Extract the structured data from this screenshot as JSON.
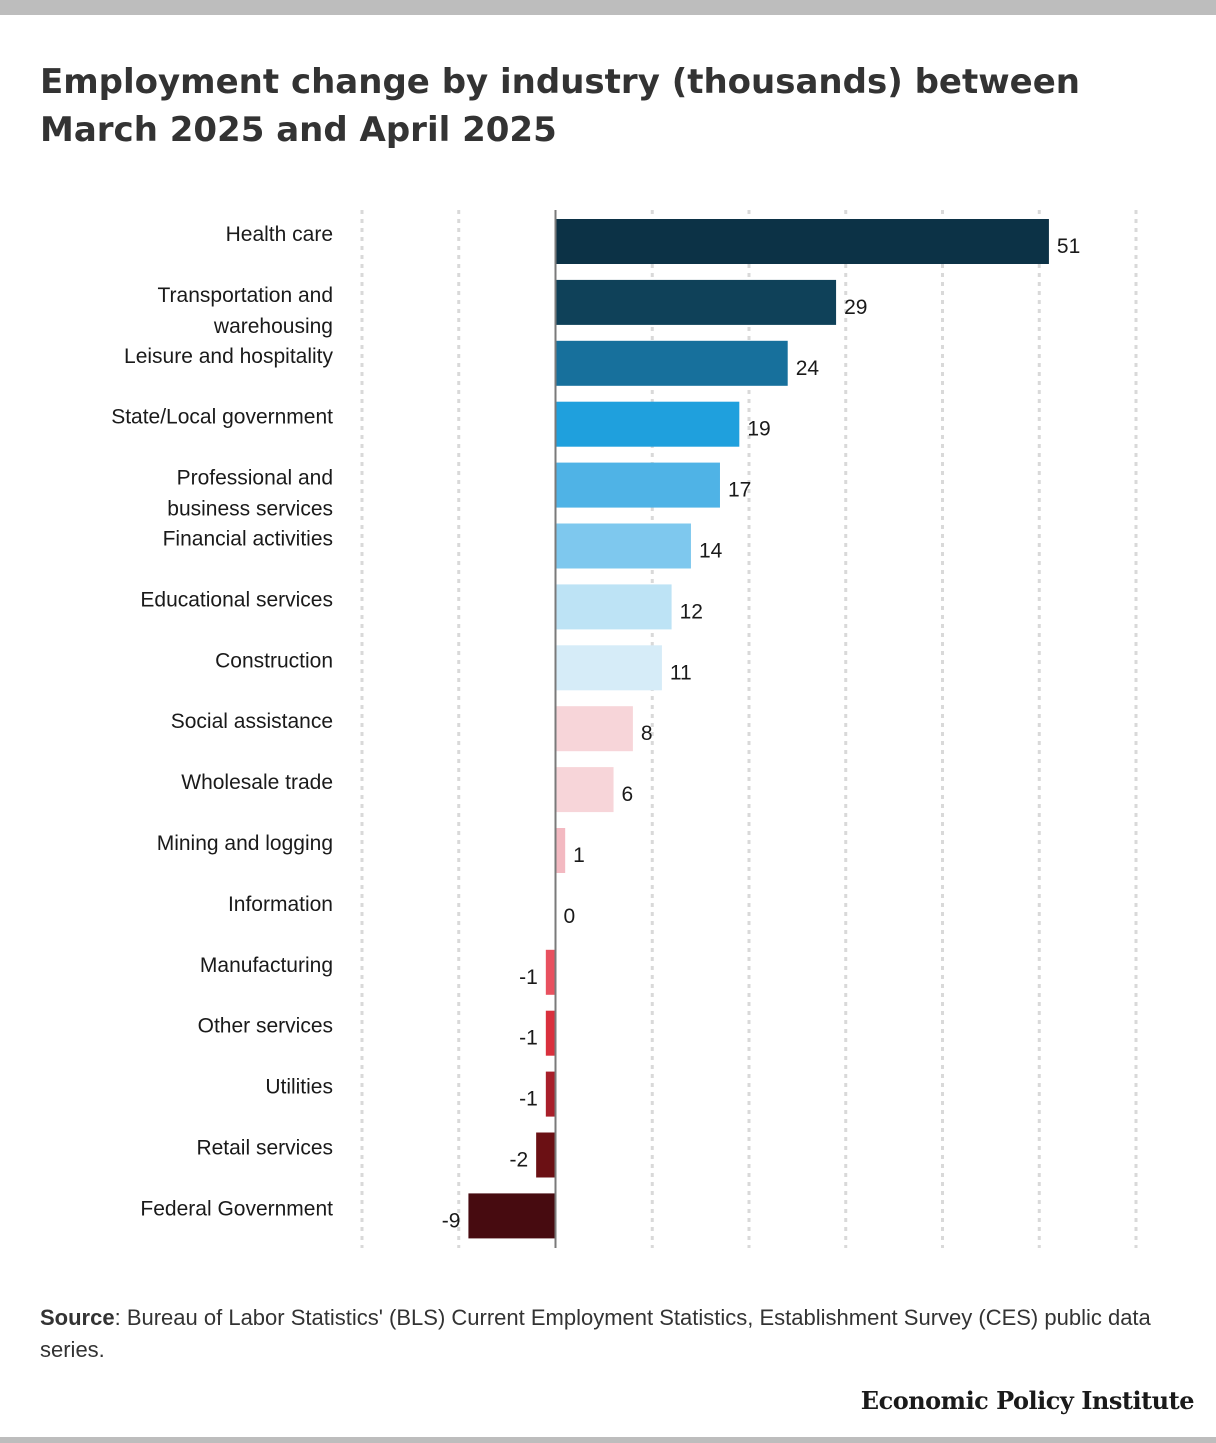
{
  "title": "Employment change by industry (thousands) between March 2025 and April 2025",
  "source": {
    "label": "Source",
    "text": ": Bureau of Labor Statistics' (BLS) Current Employment Statistics, Establishment Survey (CES) public data series."
  },
  "brand": "Economic Policy Institute",
  "chart_data": {
    "type": "bar",
    "orientation": "horizontal",
    "title": "Employment change by industry (thousands) between March 2025 and April 2025",
    "categories": [
      "Health care",
      "Transportation and warehousing",
      "Leisure and hospitality",
      "State/Local government",
      "Professional and business services",
      "Financial activities",
      "Educational services",
      "Construction",
      "Social assistance",
      "Wholesale trade",
      "Mining and logging",
      "Information",
      "Manufacturing",
      "Other services",
      "Utilities",
      "Retail services",
      "Federal Government"
    ],
    "values": [
      51,
      29,
      24,
      19,
      17,
      14,
      12,
      11,
      8,
      6,
      1,
      0,
      -1,
      -1,
      -1,
      -2,
      -9
    ],
    "colors": [
      "#0c3246",
      "#0f4159",
      "#17709c",
      "#1fa0dd",
      "#4fb3e6",
      "#7ec8ee",
      "#bde3f5",
      "#d6ecf8",
      "#f7d5d9",
      "#f7d5d9",
      "#f3b9c1",
      "#f3b9c1",
      "#e8515f",
      "#d9303d",
      "#a81f2a",
      "#6b1014",
      "#470b10"
    ],
    "xlim": [
      -20,
      60
    ],
    "grid": true,
    "legend": "none"
  }
}
